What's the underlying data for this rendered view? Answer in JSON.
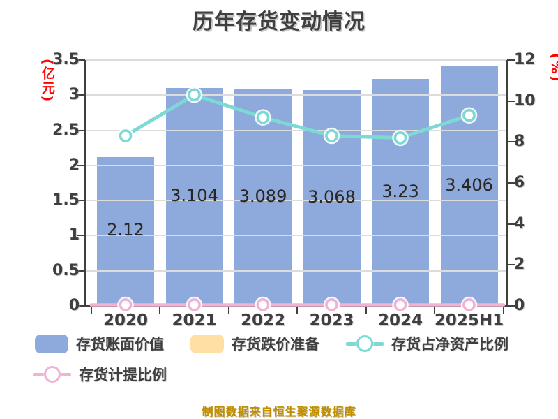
{
  "chart_data": {
    "type": "combo-bar-line",
    "title": "历年存货变动情况",
    "categories": [
      "2020",
      "2021",
      "2022",
      "2023",
      "2024",
      "2025H1"
    ],
    "series": [
      {
        "name": "存货账面价值",
        "type": "bar",
        "axis": "left",
        "color": "#8EA9DC",
        "values": [
          2.12,
          3.104,
          3.089,
          3.068,
          3.23,
          3.406
        ]
      },
      {
        "name": "存货跌价准备",
        "type": "bar",
        "axis": "left",
        "color": "#FFDFA3",
        "values": [
          0,
          0,
          0,
          0,
          0,
          0
        ]
      },
      {
        "name": "存货占净资产比例",
        "type": "line",
        "axis": "right",
        "color": "#7CD9D3",
        "values": [
          8.3,
          10.3,
          9.2,
          8.3,
          8.2,
          9.3
        ]
      },
      {
        "name": "存货计提比例",
        "type": "line",
        "axis": "right",
        "color": "#F2B3D3",
        "values": [
          0,
          0,
          0,
          0,
          0,
          0
        ]
      }
    ],
    "left_axis": {
      "label": "(亿元)",
      "min": 0,
      "max": 3.5,
      "ticks": [
        "3.5",
        "3",
        "2.5",
        "2",
        "1.5",
        "1",
        "0.5",
        "0"
      ]
    },
    "right_axis": {
      "label": "(%)",
      "min": 0,
      "max": 12,
      "ticks": [
        "12",
        "10",
        "8",
        "6",
        "4",
        "2",
        "0"
      ]
    },
    "grid": "horizontal",
    "legend_position": "bottom",
    "footer": "制图数据来自恒生聚源数据库"
  }
}
